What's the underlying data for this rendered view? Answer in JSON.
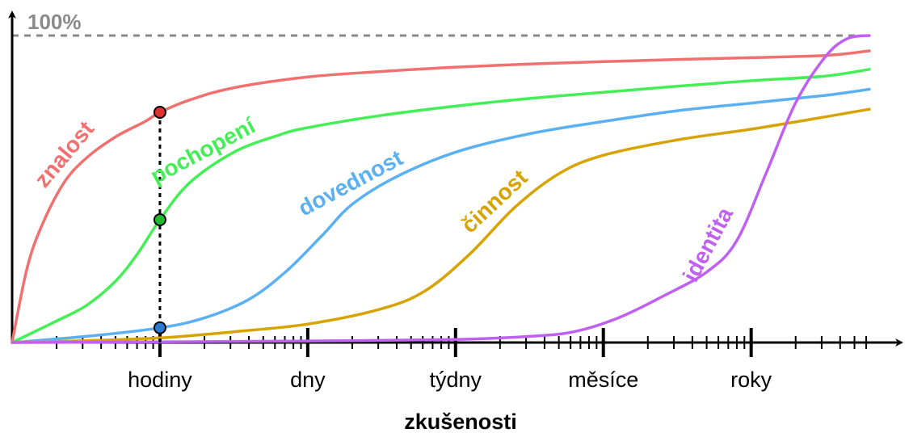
{
  "chart_data": {
    "type": "line",
    "title": "",
    "xlabel": "zkušenosti",
    "ylabel": "",
    "top_label": "100%",
    "x_scale": "log",
    "categories": [
      "hodiny",
      "dny",
      "týdny",
      "měsíce",
      "roky"
    ],
    "xlim": [
      0,
      5.8
    ],
    "ylim": [
      0,
      100
    ],
    "grid": false,
    "marker_x": 1,
    "series": [
      {
        "name": "znalost",
        "color": "#f07070",
        "x": [
          0,
          0.1,
          0.2,
          0.35,
          0.5,
          0.7,
          0.9,
          1.0,
          1.2,
          1.5,
          2.0,
          2.5,
          3.0,
          3.5,
          4.0,
          4.5,
          5.0,
          5.5,
          5.8
        ],
        "y": [
          0,
          24,
          38,
          52,
          60,
          67,
          72,
          75,
          79,
          83,
          86.5,
          88.3,
          89.7,
          90.7,
          91.5,
          92.2,
          92.8,
          93.5,
          95
        ]
      },
      {
        "name": "pochopení",
        "color": "#44ee55",
        "x": [
          0,
          0.3,
          0.5,
          0.7,
          0.85,
          1.0,
          1.2,
          1.5,
          1.8,
          2.0,
          2.5,
          3.0,
          3.5,
          4.0,
          4.5,
          5.0,
          5.5,
          5.8
        ],
        "y": [
          0,
          7,
          12,
          20,
          29,
          40,
          52,
          62,
          67.5,
          70,
          74,
          77,
          79.5,
          81.5,
          83.5,
          85.3,
          86.8,
          89
        ]
      },
      {
        "name": "dovednost",
        "color": "#5ab0f0",
        "x": [
          0,
          0.5,
          1.0,
          1.3,
          1.6,
          1.85,
          2.1,
          2.3,
          2.6,
          3.0,
          3.5,
          4.0,
          4.5,
          5.0,
          5.5,
          5.8
        ],
        "y": [
          0,
          2,
          4.8,
          8,
          14,
          23,
          35,
          45,
          54,
          62,
          68,
          72,
          75.5,
          78,
          80.5,
          82.5
        ]
      },
      {
        "name": "činnost",
        "color": "#d6a300",
        "x": [
          0,
          0.5,
          1.0,
          1.5,
          2.0,
          2.5,
          2.8,
          3.1,
          3.4,
          3.7,
          4.0,
          4.5,
          5.0,
          5.5,
          5.8
        ],
        "y": [
          0,
          0.6,
          1.5,
          3.5,
          6,
          11,
          17,
          29,
          44,
          55,
          61,
          66,
          69.5,
          73.5,
          76
        ]
      },
      {
        "name": "identita",
        "color": "#c060f0",
        "x": [
          0,
          1.0,
          2.0,
          3.0,
          3.5,
          3.8,
          4.1,
          4.4,
          4.7,
          4.9,
          5.1,
          5.3,
          5.5,
          5.65,
          5.8
        ],
        "y": [
          0,
          0.2,
          0.5,
          1,
          2,
          3.5,
          8,
          15,
          23,
          33,
          55,
          78,
          93,
          99,
          100
        ]
      }
    ]
  }
}
